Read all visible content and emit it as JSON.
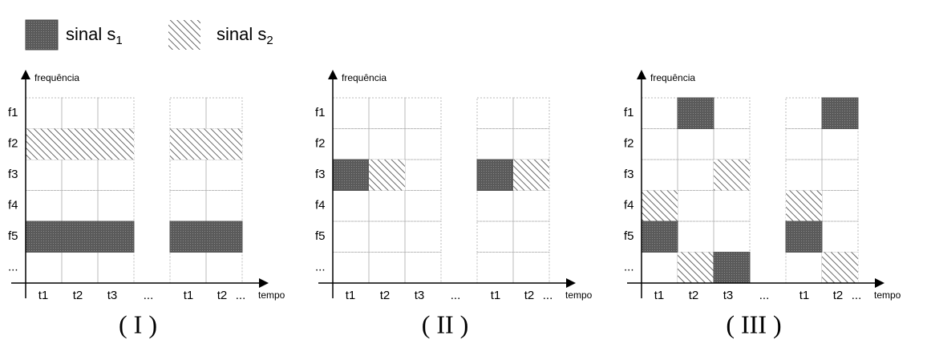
{
  "legend": [
    {
      "label": "sinal s",
      "subscript": "1"
    },
    {
      "label": "sinal s",
      "subscript": "2"
    }
  ],
  "panels": [
    {
      "caption": "( I )",
      "y_axis_label": "frequência",
      "x_axis_label": "tempo",
      "y_labels": [
        "f1",
        "f2",
        "f3",
        "f4",
        "f5",
        "..."
      ],
      "x_labels": [
        "t1",
        "t2",
        "t3",
        "...",
        "t1",
        "t2",
        "..."
      ]
    },
    {
      "caption": "( II )",
      "y_axis_label": "frequência",
      "x_axis_label": "tempo",
      "y_labels": [
        "f1",
        "f2",
        "f3",
        "f4",
        "f5",
        "..."
      ],
      "x_labels": [
        "t1",
        "t2",
        "t3",
        "...",
        "t1",
        "t2",
        "..."
      ]
    },
    {
      "caption": "( III )",
      "y_axis_label": "frequência",
      "x_axis_label": "tempo",
      "y_labels": [
        "f1",
        "f2",
        "f3",
        "f4",
        "f5",
        "..."
      ],
      "x_labels": [
        "t1",
        "t2",
        "t3",
        "...",
        "t1",
        "t2",
        "..."
      ]
    }
  ]
}
